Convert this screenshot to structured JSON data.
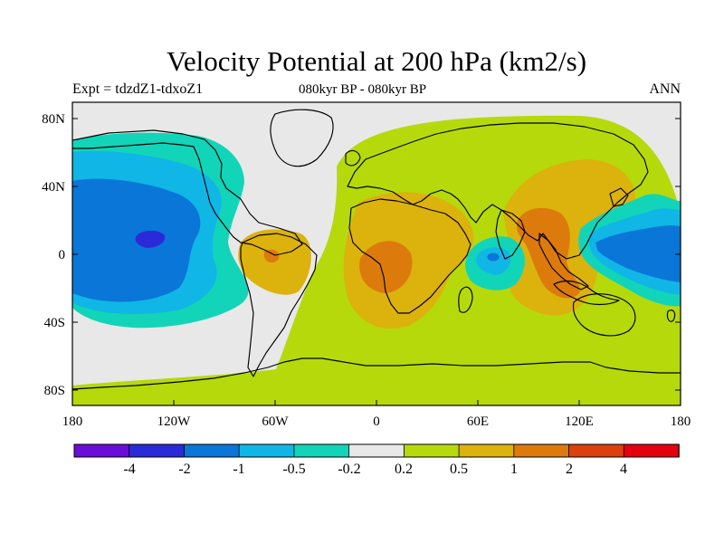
{
  "map": {
    "title": "Velocity Potential at 200 hPa (km2/s)",
    "subtitle_left": "Expt = tdzdZ1-tdxoZ1",
    "subtitle_center": "080kyr BP - 080kyr BP",
    "subtitle_right": "ANN",
    "y_ticks": [
      "80N",
      "40N",
      "0",
      "40S",
      "80S"
    ],
    "x_ticks": [
      "180",
      "120W",
      "60W",
      "0",
      "60E",
      "120E",
      "180"
    ]
  },
  "legend": {
    "labels": [
      "-4",
      "-2",
      "-1",
      "-0.5",
      "-0.2",
      "0.2",
      "0.5",
      "1",
      "2",
      "4"
    ],
    "colors": [
      "#6a0dd8",
      "#2a2ad8",
      "#0a76d8",
      "#10b6e6",
      "#12d4b8",
      "#e8e8e8",
      "#b6d90c",
      "#dcb20c",
      "#dc7a0c",
      "#dc400c",
      "#e6000e"
    ]
  }
}
